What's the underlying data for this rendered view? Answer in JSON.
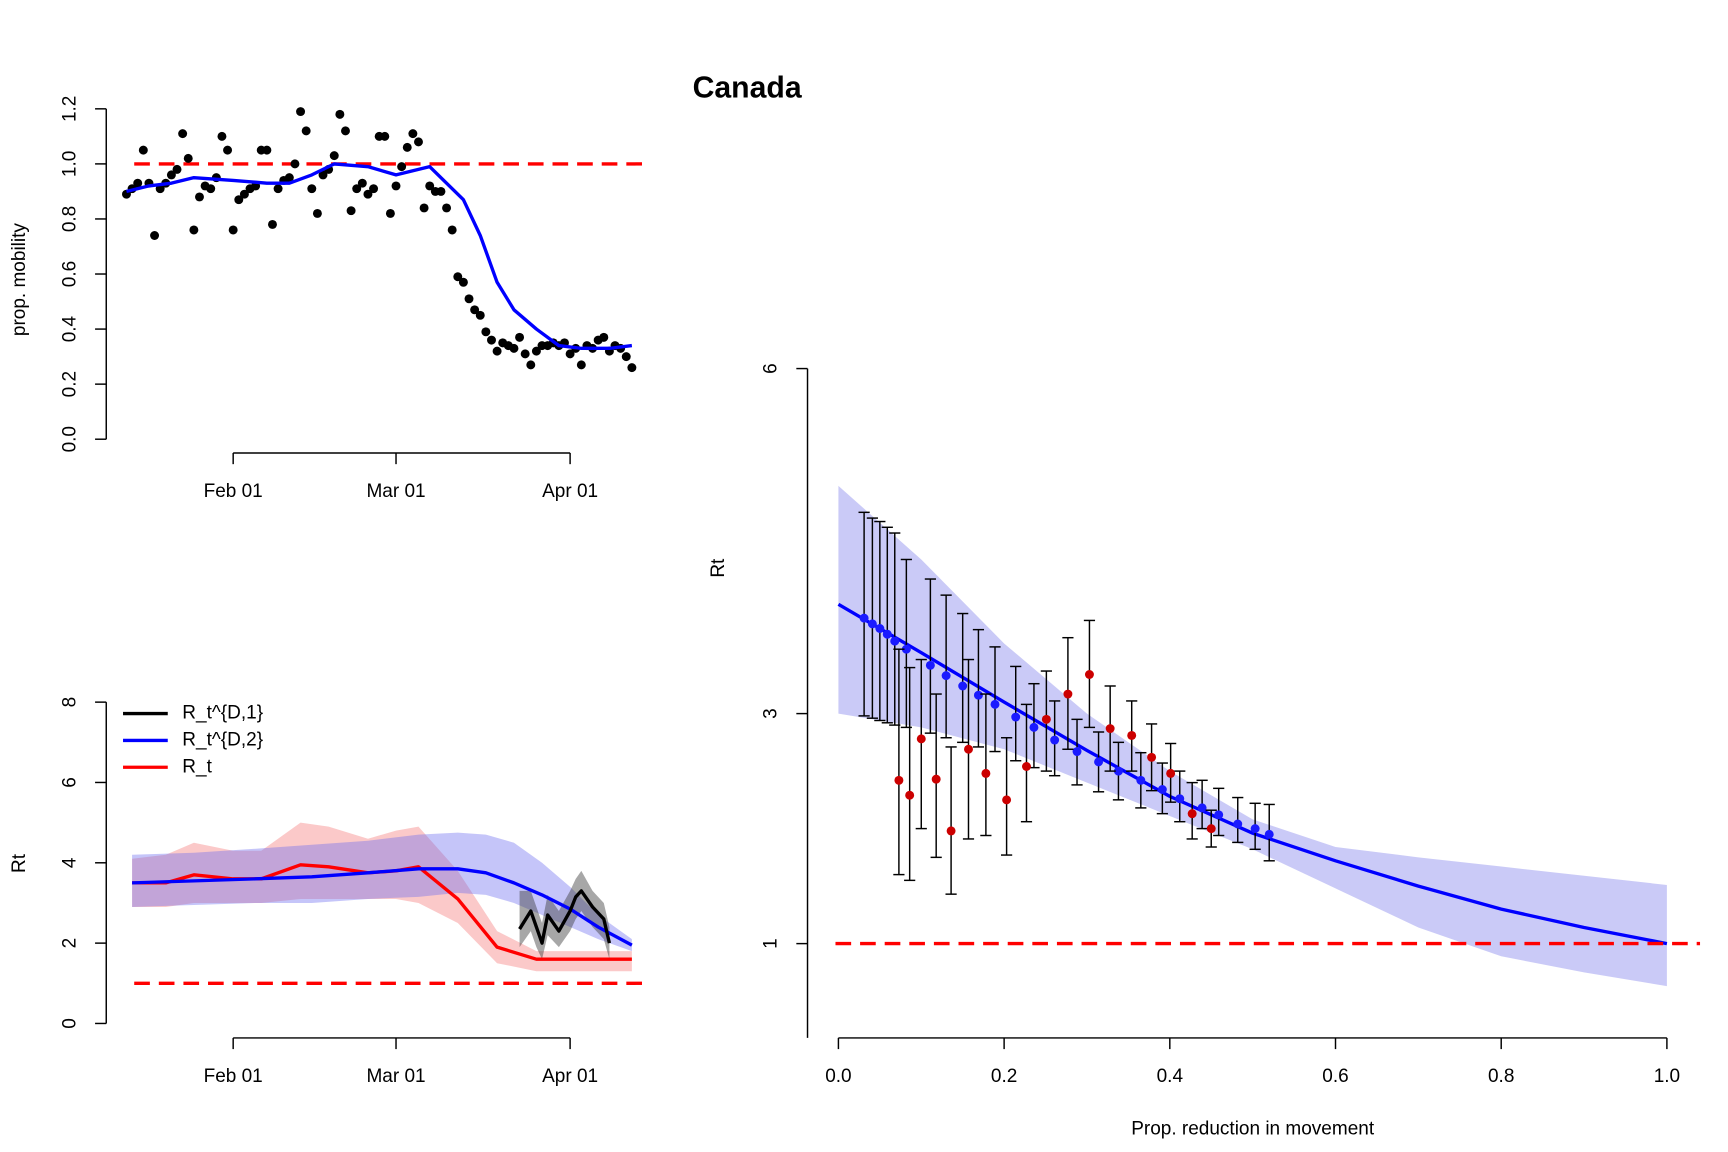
{
  "title": "Canada",
  "chart_data": [
    {
      "type": "scatter",
      "ylabel": "prop. mobility",
      "hline": 1.0,
      "hline_color": "#ff0000",
      "xlim": [
        "Jan 09",
        "Apr 14"
      ],
      "ylim": [
        -0.05,
        1.25
      ],
      "xticks": [
        "Feb 01",
        "Mar 01",
        "Apr 01"
      ],
      "yticks": [
        {
          "value": 0,
          "label": "0.0"
        },
        0.2,
        0.4,
        0.6,
        0.8,
        {
          "value": 1,
          "label": "1.0"
        },
        1.2
      ],
      "points": {
        "color": "#000000",
        "x": [
          "Jan 13",
          "Jan 14",
          "Jan 15",
          "Jan 16",
          "Jan 17",
          "Jan 18",
          "Jan 19",
          "Jan 20",
          "Jan 21",
          "Jan 22",
          "Jan 23",
          "Jan 24",
          "Jan 25",
          "Jan 26",
          "Jan 27",
          "Jan 28",
          "Jan 29",
          "Jan 30",
          "Jan 31",
          "Feb 01",
          "Feb 02",
          "Feb 03",
          "Feb 04",
          "Feb 05",
          "Feb 06",
          "Feb 07",
          "Feb 08",
          "Feb 09",
          "Feb 10",
          "Feb 11",
          "Feb 12",
          "Feb 13",
          "Feb 14",
          "Feb 15",
          "Feb 16",
          "Feb 17",
          "Feb 18",
          "Feb 19",
          "Feb 20",
          "Feb 21",
          "Feb 22",
          "Feb 23",
          "Feb 24",
          "Feb 25",
          "Feb 26",
          "Feb 27",
          "Feb 28",
          "Feb 29",
          "Mar 01",
          "Mar 02",
          "Mar 03",
          "Mar 04",
          "Mar 05",
          "Mar 06",
          "Mar 07",
          "Mar 08",
          "Mar 09",
          "Mar 10",
          "Mar 11",
          "Mar 12",
          "Mar 13",
          "Mar 14",
          "Mar 15",
          "Mar 16",
          "Mar 17",
          "Mar 18",
          "Mar 19",
          "Mar 20",
          "Mar 21",
          "Mar 22",
          "Mar 23",
          "Mar 24",
          "Mar 25",
          "Mar 26",
          "Mar 27",
          "Mar 28",
          "Mar 29",
          "Mar 30",
          "Mar 31",
          "Apr 01",
          "Apr 02",
          "Apr 03",
          "Apr 04",
          "Apr 05",
          "Apr 06",
          "Apr 07",
          "Apr 08",
          "Apr 09",
          "Apr 10",
          "Apr 11",
          "Apr 12"
        ],
        "values": [
          0.89,
          0.91,
          0.93,
          1.05,
          0.93,
          0.74,
          0.91,
          0.93,
          0.96,
          0.98,
          1.11,
          1.02,
          0.76,
          0.88,
          0.92,
          0.91,
          0.95,
          1.1,
          1.05,
          0.76,
          0.87,
          0.89,
          0.91,
          0.92,
          1.05,
          1.05,
          0.78,
          0.91,
          0.94,
          0.95,
          1.0,
          1.19,
          1.12,
          0.91,
          0.82,
          0.96,
          0.98,
          1.03,
          1.18,
          1.12,
          0.83,
          0.91,
          0.93,
          0.89,
          0.91,
          1.1,
          1.1,
          0.82,
          0.92,
          0.99,
          1.06,
          1.11,
          1.08,
          0.84,
          0.92,
          0.9,
          0.9,
          0.84,
          0.76,
          0.59,
          0.57,
          0.51,
          0.47,
          0.45,
          0.39,
          0.36,
          0.32,
          0.35,
          0.34,
          0.33,
          0.37,
          0.31,
          0.27,
          0.32,
          0.34,
          0.34,
          0.35,
          0.34,
          0.35,
          0.31,
          0.33,
          0.27,
          0.34,
          0.33,
          0.36,
          0.37,
          0.32,
          0.34,
          0.33,
          0.3,
          0.26
        ]
      },
      "smooth": {
        "color": "#0000ff",
        "x": [
          "Jan 13",
          "Jan 17",
          "Jan 21",
          "Jan 25",
          "Feb 01",
          "Feb 07",
          "Feb 11",
          "Feb 15",
          "Feb 19",
          "Feb 25",
          "Mar 01",
          "Mar 05",
          "Mar 07",
          "Mar 10",
          "Mar 13",
          "Mar 16",
          "Mar 19",
          "Mar 22",
          "Mar 26",
          "Mar 30",
          "Apr 03",
          "Apr 08",
          "Apr 12"
        ],
        "values": [
          0.9,
          0.92,
          0.93,
          0.95,
          0.94,
          0.93,
          0.93,
          0.96,
          1.0,
          0.99,
          0.96,
          0.98,
          0.99,
          0.93,
          0.87,
          0.74,
          0.57,
          0.47,
          0.4,
          0.34,
          0.33,
          0.33,
          0.34
        ]
      }
    },
    {
      "type": "line",
      "ylabel": "Rt",
      "hline": 1,
      "hline_color": "#ff0000",
      "xlim": [
        "Jan 09",
        "Apr 14"
      ],
      "ylim": [
        -0.36,
        8.3
      ],
      "xticks": [
        "Feb 01",
        "Mar 01",
        "Apr 01"
      ],
      "yticks": [
        0,
        2,
        4,
        6,
        8
      ],
      "series": [
        {
          "name": "R_t^{D,1}",
          "color": "#000000",
          "band_color": "rgba(60,60,60,0.45)",
          "x": [
            "Mar 23",
            "Mar 25",
            "Mar 26",
            "Mar 27",
            "Mar 28",
            "Mar 30",
            "Apr 01",
            "Apr 02",
            "Apr 03",
            "Apr 05",
            "Apr 07",
            "Apr 08"
          ],
          "values": [
            2.35,
            2.8,
            2.4,
            2.0,
            2.7,
            2.3,
            2.8,
            3.15,
            3.3,
            2.9,
            2.6,
            2.0
          ],
          "lower": [
            1.9,
            2.3,
            1.9,
            1.6,
            2.2,
            1.9,
            2.3,
            2.6,
            2.8,
            2.4,
            2.1,
            1.6
          ],
          "upper": [
            3.3,
            3.3,
            2.9,
            2.5,
            3.2,
            2.8,
            3.3,
            3.6,
            3.8,
            3.3,
            3.0,
            2.4
          ]
        },
        {
          "name": "R_t^{D,2}",
          "color": "#0000ff",
          "band_color": "rgba(110,110,240,0.4)",
          "x": [
            "Jan 14",
            "Jan 25",
            "Feb 05",
            "Feb 15",
            "Feb 25",
            "Mar 05",
            "Mar 12",
            "Mar 17",
            "Mar 22",
            "Mar 27",
            "Apr 01",
            "Apr 06",
            "Apr 12"
          ],
          "values": [
            3.5,
            3.55,
            3.6,
            3.65,
            3.75,
            3.85,
            3.85,
            3.75,
            3.5,
            3.2,
            2.85,
            2.4,
            1.95
          ],
          "lower": [
            2.9,
            2.95,
            3.0,
            3.0,
            3.1,
            3.15,
            3.25,
            3.2,
            3.0,
            2.7,
            2.4,
            2.1,
            1.8
          ],
          "upper": [
            4.2,
            4.25,
            4.35,
            4.45,
            4.55,
            4.7,
            4.75,
            4.7,
            4.5,
            4.0,
            3.4,
            2.7,
            2.1
          ]
        },
        {
          "name": "R_t",
          "color": "#ff0000",
          "band_color": "rgba(245,120,120,0.4)",
          "x": [
            "Jan 14",
            "Jan 20",
            "Jan 25",
            "Feb 01",
            "Feb 06",
            "Feb 13",
            "Feb 18",
            "Feb 25",
            "Mar 01",
            "Mar 05",
            "Mar 12",
            "Mar 19",
            "Mar 26",
            "Apr 12"
          ],
          "values": [
            3.5,
            3.5,
            3.7,
            3.6,
            3.6,
            3.95,
            3.9,
            3.75,
            3.8,
            3.9,
            3.1,
            1.9,
            1.6,
            1.6
          ],
          "lower": [
            2.9,
            2.9,
            3.0,
            3.0,
            3.0,
            3.1,
            3.1,
            3.1,
            3.1,
            3.0,
            2.5,
            1.5,
            1.3,
            1.3
          ],
          "upper": [
            4.1,
            4.2,
            4.5,
            4.3,
            4.3,
            5.0,
            4.9,
            4.6,
            4.8,
            4.9,
            3.8,
            2.3,
            1.8,
            1.8
          ]
        }
      ]
    },
    {
      "type": "errorbar",
      "xlabel": "Prop. reduction in movement",
      "ylabel": "Rt",
      "hline": 1,
      "hline_color": "#ff0000",
      "xlim": [
        -0.04,
        1.04
      ],
      "ylim": [
        0.18,
        6.19
      ],
      "xticks": [
        {
          "value": 0,
          "label": "0.0"
        },
        0.2,
        0.4,
        0.6,
        0.8,
        {
          "value": 1,
          "label": "1.0"
        }
      ],
      "yticks": [
        1,
        3,
        6
      ],
      "curve": {
        "color": "#0000ff",
        "band_color": "rgba(150,150,240,0.5)",
        "x": [
          0,
          0.1,
          0.2,
          0.3,
          0.4,
          0.5,
          0.6,
          0.7,
          0.8,
          0.9,
          1.0
        ],
        "values": [
          3.95,
          3.53,
          3.1,
          2.68,
          2.28,
          1.96,
          1.72,
          1.5,
          1.3,
          1.14,
          1.0
        ],
        "lower": [
          3.0,
          2.88,
          2.69,
          2.4,
          2.11,
          1.82,
          1.48,
          1.14,
          0.89,
          0.75,
          0.63
        ],
        "upper": [
          4.98,
          4.34,
          3.61,
          3.0,
          2.5,
          2.08,
          1.84,
          1.75,
          1.67,
          1.59,
          1.51
        ]
      },
      "series": [
        {
          "color": "#1a1aff",
          "x": [
            0.031,
            0.041,
            0.05,
            0.059,
            0.068,
            0.082,
            0.111,
            0.13,
            0.15,
            0.169,
            0.189,
            0.214,
            0.236,
            0.261,
            0.288,
            0.314,
            0.338,
            0.365,
            0.391,
            0.412,
            0.439,
            0.459,
            0.482,
            0.503,
            0.52
          ],
          "values": [
            3.83,
            3.78,
            3.74,
            3.69,
            3.63,
            3.56,
            3.42,
            3.33,
            3.24,
            3.16,
            3.08,
            2.97,
            2.88,
            2.77,
            2.67,
            2.58,
            2.5,
            2.42,
            2.34,
            2.26,
            2.18,
            2.12,
            2.04,
            2.0,
            1.95
          ],
          "lower": [
            2.98,
            2.96,
            2.94,
            2.92,
            2.9,
            2.88,
            2.83,
            2.79,
            2.75,
            2.71,
            2.67,
            2.59,
            2.53,
            2.46,
            2.38,
            2.32,
            2.25,
            2.18,
            2.13,
            2.06,
            2.0,
            1.94,
            1.88,
            1.82,
            1.72
          ],
          "upper": [
            4.75,
            4.7,
            4.67,
            4.62,
            4.57,
            4.34,
            4.17,
            4.03,
            3.87,
            3.73,
            3.58,
            3.41,
            3.26,
            3.11,
            2.95,
            2.84,
            2.75,
            2.66,
            2.57,
            2.5,
            2.42,
            2.35,
            2.27,
            2.22,
            2.21
          ]
        },
        {
          "color": "#cc0000",
          "x": [
            0.073,
            0.086,
            0.1,
            0.118,
            0.136,
            0.157,
            0.178,
            0.203,
            0.227,
            0.251,
            0.277,
            0.303,
            0.328,
            0.354,
            0.378,
            0.401,
            0.427,
            0.45
          ],
          "values": [
            2.42,
            2.29,
            2.78,
            2.43,
            1.98,
            2.69,
            2.48,
            2.25,
            2.54,
            2.95,
            3.17,
            3.34,
            2.87,
            2.81,
            2.62,
            2.48,
            2.13,
            2.0
          ],
          "lower": [
            1.6,
            1.55,
            2.0,
            1.75,
            1.43,
            1.91,
            1.94,
            1.77,
            2.06,
            2.5,
            2.69,
            2.88,
            2.5,
            2.5,
            2.33,
            2.23,
            1.91,
            1.84
          ],
          "upper": [
            3.56,
            3.4,
            3.47,
            3.17,
            2.71,
            3.47,
            3.17,
            2.79,
            3.08,
            3.37,
            3.66,
            3.81,
            3.24,
            3.11,
            2.91,
            2.74,
            2.4,
            2.16
          ]
        }
      ]
    }
  ]
}
